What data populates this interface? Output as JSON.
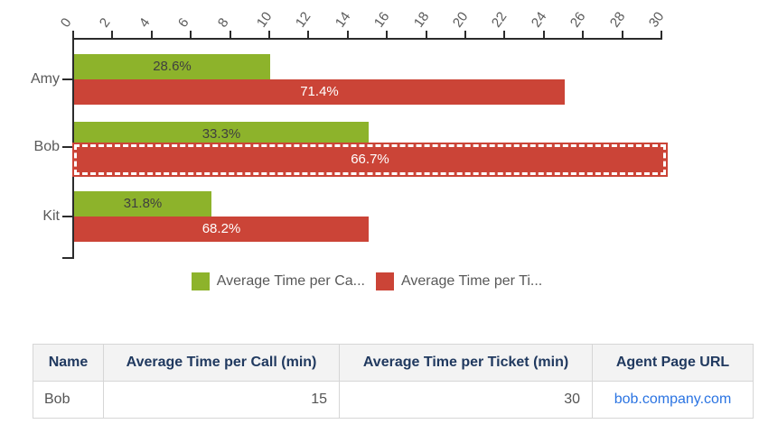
{
  "chart_data": {
    "type": "bar",
    "orientation": "horizontal",
    "title": "",
    "x_axis": {
      "position": "top",
      "min": 0,
      "max": 30,
      "tick_step": 2,
      "tick_labels": [
        "0",
        "2",
        "4",
        "6",
        "8",
        "10",
        "12",
        "14",
        "16",
        "18",
        "20",
        "22",
        "24",
        "26",
        "28",
        "30"
      ]
    },
    "categories": [
      "Amy",
      "Bob",
      "Kit"
    ],
    "series": [
      {
        "name": "Average Time per Call (min)",
        "legend_label": "Average Time per Ca...",
        "color": "#8db32b",
        "values": [
          10,
          15,
          7
        ],
        "bar_labels": [
          "28.6%",
          "33.3%",
          "31.8%"
        ]
      },
      {
        "name": "Average Time per Ticket (min)",
        "legend_label": "Average Time per Ti...",
        "color": "#cb4437",
        "values": [
          25,
          30,
          15
        ],
        "bar_labels": [
          "71.4%",
          "66.7%",
          "68.2%"
        ]
      }
    ],
    "selected_point": {
      "category": "Bob",
      "series": "Average Time per Ticket (min)"
    },
    "legend_position": "bottom",
    "grid": false
  },
  "table": {
    "columns": [
      {
        "key": "name",
        "label": "Name"
      },
      {
        "key": "call",
        "label": "Average Time per Call (min)"
      },
      {
        "key": "ticket",
        "label": "Average Time per Ticket (min)"
      },
      {
        "key": "url",
        "label": "Agent Page URL"
      }
    ],
    "rows": [
      {
        "name": "Bob",
        "call": "15",
        "ticket": "30",
        "url": "bob.company.com"
      }
    ]
  },
  "colors": {
    "series_call_green": "#8db32b",
    "series_ticket_red": "#cb4437",
    "axis_line": "#2b2b2b",
    "tick_label_gray": "#5a5a5a",
    "bar_label_dark": "#3f3f3f",
    "bar_label_light": "#ffffff",
    "table_header_text": "#20395f",
    "table_header_bg": "#f3f3f3",
    "table_border": "#d6d6d6",
    "link_blue": "#2b74e2",
    "selection_dash": "#ffffff"
  }
}
